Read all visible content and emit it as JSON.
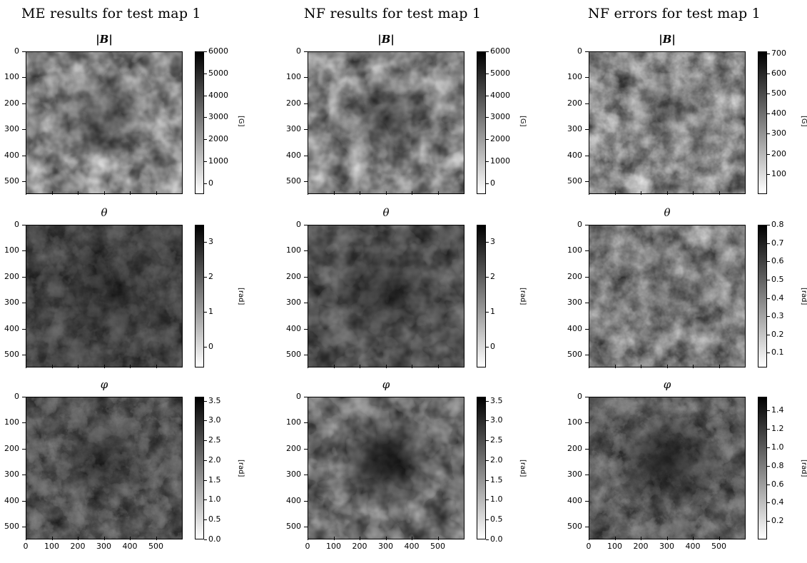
{
  "columns": [
    {
      "title": "ME results for test map 1"
    },
    {
      "title": "NF results for test map 1"
    },
    {
      "title": "NF errors for test map 1"
    }
  ],
  "rows": [
    {
      "symbol": "|B|",
      "unit": "[G]"
    },
    {
      "symbol": "θ",
      "unit": "[rad]"
    },
    {
      "symbol": "φ",
      "unit": "[rad]"
    }
  ],
  "colorbars": [
    [
      {
        "ticks": [
          "6000",
          "5000",
          "4000",
          "3000",
          "2000",
          "1000",
          "0"
        ],
        "range": [
          -500,
          6000
        ]
      },
      {
        "ticks": [
          "6000",
          "5000",
          "4000",
          "3000",
          "2000",
          "1000",
          "0"
        ],
        "range": [
          -500,
          6000
        ]
      },
      {
        "ticks": [
          "700",
          "600",
          "500",
          "400",
          "300",
          "200",
          "100"
        ],
        "range": [
          0,
          710
        ]
      }
    ],
    [
      {
        "ticks": [
          "3",
          "2",
          "1",
          "0"
        ],
        "range": [
          -0.6,
          3.5
        ]
      },
      {
        "ticks": [
          "3",
          "2",
          "1",
          "0"
        ],
        "range": [
          -0.6,
          3.5
        ]
      },
      {
        "ticks": [
          "0.8",
          "0.7",
          "0.6",
          "0.5",
          "0.4",
          "0.3",
          "0.2",
          "0.1"
        ],
        "range": [
          0.02,
          0.8
        ]
      }
    ],
    [
      {
        "ticks": [
          "3.5",
          "3.0",
          "2.5",
          "2.0",
          "1.5",
          "1.0",
          "0.5",
          "0.0"
        ],
        "range": [
          0,
          3.6
        ]
      },
      {
        "ticks": [
          "3.5",
          "3.0",
          "2.5",
          "2.0",
          "1.5",
          "1.0",
          "0.5",
          "0.0"
        ],
        "range": [
          0,
          3.6
        ]
      },
      {
        "ticks": [
          "1.4",
          "1.2",
          "1.0",
          "0.8",
          "0.6",
          "0.4",
          "0.2"
        ],
        "range": [
          0,
          1.55
        ]
      }
    ]
  ],
  "yticks": [
    "0",
    "100",
    "200",
    "300",
    "400",
    "500"
  ],
  "xticks": [
    "0",
    "100",
    "200",
    "300",
    "400",
    "500"
  ],
  "colormap": {
    "low": "#ffffff",
    "high": "#000000"
  }
}
